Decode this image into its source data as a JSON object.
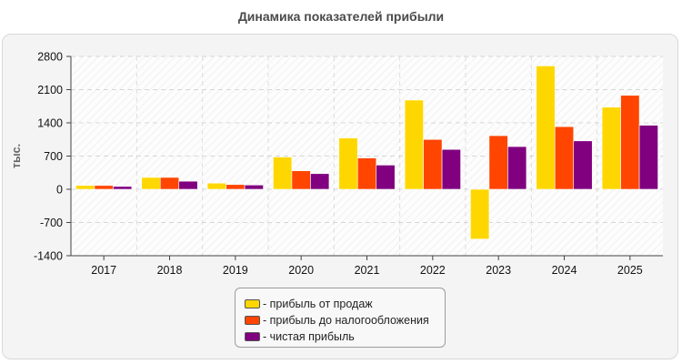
{
  "chart_data": {
    "type": "bar",
    "title": "Динамика показателей прибыли",
    "ylabel": "тыс.",
    "xlabel": "",
    "categories": [
      "2017",
      "2018",
      "2019",
      "2020",
      "2021",
      "2022",
      "2023",
      "2024",
      "2025"
    ],
    "ylim": [
      -1400,
      2800
    ],
    "yticks": [
      2800,
      2100,
      1400,
      700,
      0,
      -700,
      -1400
    ],
    "grid": true,
    "legend_position": "bottom-center",
    "series": [
      {
        "name": "- прибыль от продаж",
        "color": "#FFD700",
        "values": [
          80,
          250,
          130,
          680,
          1080,
          1880,
          -1050,
          2600,
          1730
        ]
      },
      {
        "name": "- прибыль до налогообложения",
        "color": "#FF4500",
        "values": [
          80,
          250,
          100,
          390,
          660,
          1050,
          1130,
          1320,
          1980
        ]
      },
      {
        "name": "- чистая прибыль",
        "color": "#800080",
        "values": [
          60,
          170,
          90,
          330,
          510,
          840,
          900,
          1020,
          1350
        ]
      }
    ]
  }
}
